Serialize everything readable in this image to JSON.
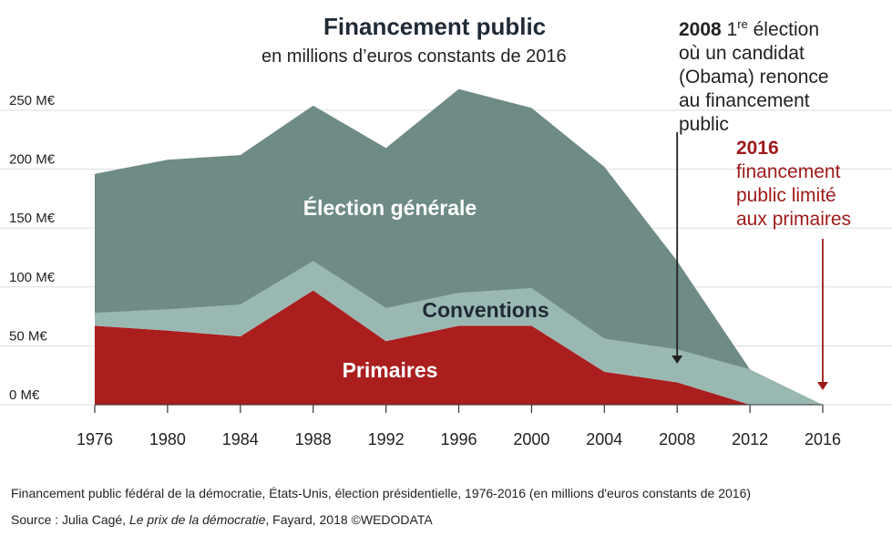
{
  "header": {
    "title": "Financement public",
    "subtitle": "en millions d’euros constants de 2016"
  },
  "annotations": {
    "a2008": {
      "year": "2008",
      "sup": "re",
      "line1_rest": " 1",
      "line1_after": " élection",
      "line2": "où un candidat",
      "line3": "(Obama) renonce",
      "line4": "au financement",
      "line5": "public"
    },
    "a2016": {
      "year": "2016",
      "line2": "financement",
      "line3": "public limité",
      "line4": "aux primaires"
    }
  },
  "footer": {
    "line1": "Financement public fédéral de la démocratie, États-Unis, élection présidentielle, 1976-2016 (en millions d'euros constants de 2016)",
    "source_prefix": "Source : Julia Cagé, ",
    "source_book": "Le prix de la démocratie",
    "source_suffix": ", Fayard, 2018 ©WEDODATA"
  },
  "colors": {
    "primaires": "#aa1e1e",
    "conventions": "#9ab8b2",
    "generale": "#6e8b85",
    "accent_red": "#9e1a1a",
    "grid": "#dddddd"
  },
  "chart_data": {
    "type": "area",
    "stacked": true,
    "x": [
      1976,
      1980,
      1984,
      1988,
      1992,
      1996,
      2000,
      2004,
      2008,
      2012,
      2016
    ],
    "ylim": [
      0,
      250
    ],
    "yticks": [
      0,
      50,
      100,
      150,
      200,
      250
    ],
    "ytick_labels": [
      "0 M€",
      "50 M€",
      "100 M€",
      "150 M€",
      "200 M€",
      "250 M€"
    ],
    "series": [
      {
        "name": "Primaires",
        "values": [
          67,
          63,
          58,
          97,
          54,
          67,
          67,
          28,
          19,
          0,
          0
        ]
      },
      {
        "name": "Conventions",
        "values": [
          11,
          18,
          27,
          25,
          28,
          28,
          32,
          28,
          28,
          30,
          0
        ]
      },
      {
        "name": "Élection générale",
        "values": [
          118,
          127,
          127,
          132,
          136,
          173,
          153,
          146,
          75,
          0,
          0
        ]
      }
    ],
    "series_labels": [
      "Primaires",
      "Conventions",
      "Élection générale"
    ],
    "markers": [
      {
        "year": 2008,
        "color": "#222222"
      },
      {
        "year": 2016,
        "color": "#9e1a1a"
      }
    ]
  }
}
